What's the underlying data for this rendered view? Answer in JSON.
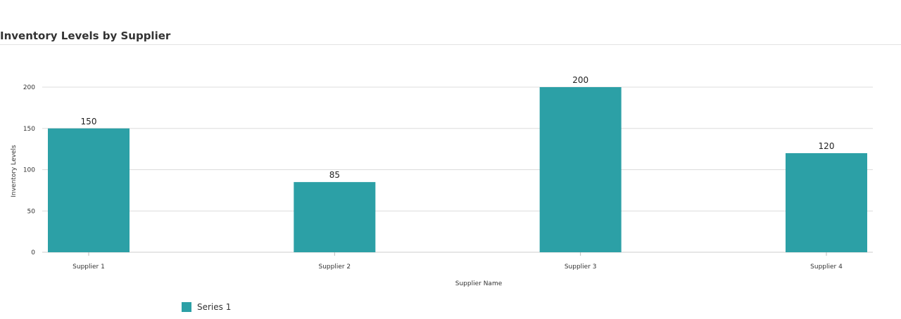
{
  "chart_data": {
    "type": "bar",
    "title": "Inventory Levels by Supplier",
    "xlabel": "Supplier Name",
    "ylabel": "Inventory Levels",
    "categories": [
      "Supplier 1",
      "Supplier 2",
      "Supplier 3",
      "Supplier 4"
    ],
    "series": [
      {
        "name": "Series 1",
        "values": [
          150,
          85,
          200,
          120
        ],
        "color": "#2ca0a6"
      }
    ],
    "ylim": [
      0,
      200
    ],
    "yticks": [
      0,
      50,
      100,
      150,
      200
    ],
    "grid": true,
    "data_labels": true,
    "legend_placement": "bottom-left"
  }
}
